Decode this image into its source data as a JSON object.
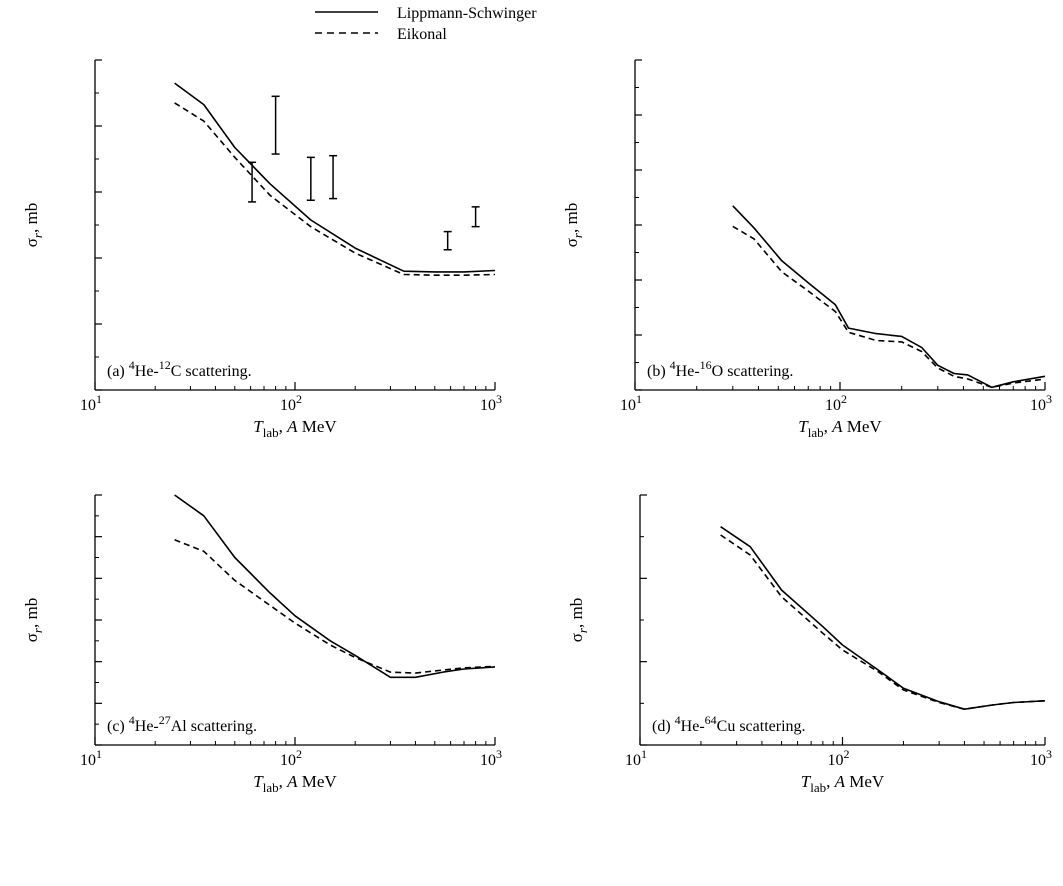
{
  "legend": {
    "entries": [
      {
        "label": "Lippmann-Schwinger",
        "style": "solid"
      },
      {
        "label": "Eikonal",
        "style": "dashed"
      }
    ],
    "placement": "top-center"
  },
  "chart_data": [
    {
      "type": "line",
      "panel_label": "(a)",
      "title": "4He-12C scattering.",
      "title_parts": [
        "4",
        "He-",
        "12",
        "C scattering."
      ],
      "xlabel": "Tlab, A MeV",
      "ylabel": "σr, mb",
      "x_scale": "log",
      "xlim": [
        10,
        1000
      ],
      "ylim": [
        0,
        1000
      ],
      "yticks": [
        0,
        200,
        400,
        600,
        800,
        1000
      ],
      "xticks": [
        {
          "base": "10",
          "exp": "1",
          "value": 10
        },
        {
          "base": "10",
          "exp": "2",
          "value": 100
        },
        {
          "base": "10",
          "exp": "3",
          "value": 1000
        }
      ],
      "series": [
        {
          "name": "Lippmann-Schwinger",
          "style": "solid",
          "x": [
            25,
            35,
            50,
            75,
            120,
            200,
            350,
            500,
            700,
            1000
          ],
          "y": [
            930,
            865,
            735,
            625,
            515,
            430,
            360,
            358,
            358,
            362
          ]
        },
        {
          "name": "Eikonal",
          "style": "dashed",
          "x": [
            25,
            35,
            50,
            75,
            120,
            200,
            350,
            500,
            700,
            1000
          ],
          "y": [
            870,
            815,
            705,
            590,
            495,
            415,
            350,
            348,
            348,
            350
          ]
        }
      ],
      "error_bars": [
        {
          "x": 61,
          "ylow": 570,
          "yhigh": 690
        },
        {
          "x": 80,
          "ylow": 715,
          "yhigh": 890
        },
        {
          "x": 120,
          "ylow": 575,
          "yhigh": 705
        },
        {
          "x": 155,
          "ylow": 580,
          "yhigh": 710
        },
        {
          "x": 580,
          "ylow": 425,
          "yhigh": 480
        },
        {
          "x": 800,
          "ylow": 495,
          "yhigh": 555
        }
      ]
    },
    {
      "type": "line",
      "panel_label": "(b)",
      "title": "4He-16O scattering.",
      "title_parts": [
        "4",
        "He-",
        "16",
        "O scattering."
      ],
      "xlabel": "Tlab, A MeV",
      "ylabel": "σr, mb",
      "x_scale": "log",
      "xlim": [
        10,
        1000
      ],
      "ylim": [
        400,
        1600
      ],
      "yticks": [
        400,
        600,
        800,
        1000,
        1200,
        1400,
        1600
      ],
      "xticks": [
        {
          "base": "10",
          "exp": "1",
          "value": 10
        },
        {
          "base": "10",
          "exp": "2",
          "value": 100
        },
        {
          "base": "10",
          "exp": "3",
          "value": 1000
        }
      ],
      "series": [
        {
          "name": "Lippmann-Schwinger",
          "style": "solid",
          "x": [
            30,
            38,
            52,
            70,
            95,
            110,
            150,
            200,
            250,
            300,
            360,
            420,
            550,
            700,
            1000
          ],
          "y": [
            1070,
            990,
            870,
            790,
            710,
            625,
            605,
            595,
            555,
            490,
            460,
            455,
            410,
            430,
            450
          ]
        },
        {
          "name": "Eikonal",
          "style": "dashed",
          "x": [
            30,
            38,
            52,
            70,
            95,
            110,
            150,
            200,
            250,
            300,
            360,
            420,
            550,
            700,
            1000
          ],
          "y": [
            995,
            950,
            830,
            760,
            685,
            610,
            580,
            575,
            540,
            480,
            450,
            440,
            410,
            425,
            440
          ]
        }
      ]
    },
    {
      "type": "line",
      "panel_label": "(c)",
      "title": "4He-27Al scattering.",
      "title_parts": [
        "4",
        "He-",
        "27",
        "Al scattering."
      ],
      "xlabel": "Tlab, A MeV",
      "ylabel": "σr, mb",
      "x_scale": "log",
      "xlim": [
        10,
        1000
      ],
      "ylim": [
        400,
        1600
      ],
      "yticks": [
        400,
        600,
        800,
        1000,
        1200,
        1400,
        1600
      ],
      "xticks": [
        {
          "base": "10",
          "exp": "1",
          "value": 10
        },
        {
          "base": "10",
          "exp": "2",
          "value": 100
        },
        {
          "base": "10",
          "exp": "3",
          "value": 1000
        }
      ],
      "series": [
        {
          "name": "Lippmann-Schwinger",
          "style": "solid",
          "x": [
            25,
            35,
            50,
            75,
            100,
            150,
            200,
            300,
            400,
            550,
            700,
            1000
          ],
          "y": [
            1600,
            1500,
            1300,
            1130,
            1020,
            900,
            830,
            725,
            725,
            750,
            765,
            775
          ]
        },
        {
          "name": "Eikonal",
          "style": "dashed",
          "x": [
            25,
            35,
            50,
            75,
            100,
            150,
            200,
            300,
            400,
            550,
            700,
            1000
          ],
          "y": [
            1385,
            1330,
            1190,
            1070,
            985,
            880,
            820,
            750,
            745,
            760,
            770,
            778
          ]
        }
      ]
    },
    {
      "type": "line",
      "panel_label": "(d)",
      "title": "4He-64Cu scattering.",
      "title_parts": [
        "4",
        "He-",
        "64",
        "Cu scattering."
      ],
      "xlabel": "Tlab, A MeV",
      "ylabel": "σr, mb",
      "x_scale": "log",
      "xlim": [
        10,
        1000
      ],
      "ylim": [
        1000,
        2500
      ],
      "yticks": [
        1000,
        1500,
        2000,
        2500
      ],
      "xticks": [
        {
          "base": "10",
          "exp": "1",
          "value": 10
        },
        {
          "base": "10",
          "exp": "2",
          "value": 100
        },
        {
          "base": "10",
          "exp": "3",
          "value": 1000
        }
      ],
      "series": [
        {
          "name": "Lippmann-Schwinger",
          "style": "solid",
          "x": [
            25,
            35,
            50,
            80,
            100,
            150,
            200,
            300,
            400,
            550,
            700,
            1000
          ],
          "y": [
            2310,
            2190,
            1930,
            1710,
            1600,
            1450,
            1340,
            1260,
            1215,
            1240,
            1255,
            1265
          ]
        },
        {
          "name": "Eikonal",
          "style": "dashed",
          "x": [
            25,
            35,
            50,
            80,
            100,
            150,
            200,
            300,
            400,
            550,
            700,
            1000
          ],
          "y": [
            2260,
            2140,
            1890,
            1670,
            1570,
            1440,
            1330,
            1255,
            1215,
            1240,
            1255,
            1265
          ]
        }
      ]
    }
  ]
}
